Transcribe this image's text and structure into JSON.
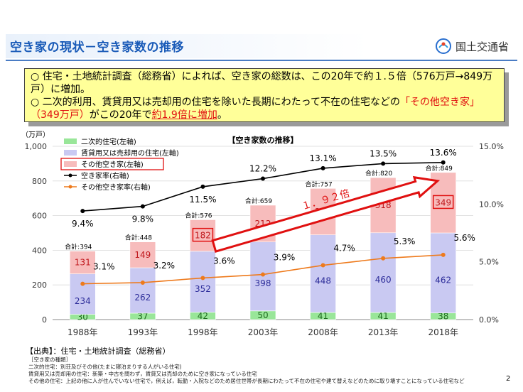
{
  "header": {
    "title": "空き家の現状－空き家数の推移",
    "ministry": "国土交通省"
  },
  "summary": {
    "line1_marker": "○",
    "line1": "住宅・土地統計調査（総務省）によれば、空き家の総数は、この20年で約１.５倍（576万戸→849万戸）に増加。",
    "line2_marker": "○",
    "line2_pre": "二次的利用、賃貸用又は売却用の住宅を除いた長期にわたって不在の住宅などの",
    "line2_red1": "「その他空き家」（349万戸）",
    "line2_mid": "がこの20年で",
    "line2_red2": "約1.9倍に増加",
    "line2_end": "。"
  },
  "chart_data": {
    "type": "bar",
    "title": "【空き家数の推移】",
    "left_unit": "（万戸）",
    "categories": [
      "1988年",
      "1993年",
      "1998年",
      "2003年",
      "2008年",
      "2013年",
      "2018年"
    ],
    "ylim": [
      0,
      1000
    ],
    "yticks": [
      "0",
      "200",
      "400",
      "600",
      "800",
      "1,000"
    ],
    "y2lim": [
      0,
      15
    ],
    "y2ticks": [
      "0.0%",
      "5.0%",
      "10.0%",
      "15.0%"
    ],
    "series": [
      {
        "name": "二次的住宅(左軸)",
        "values": [
          30,
          37,
          42,
          50,
          41,
          41,
          38
        ],
        "color": "#99e699"
      },
      {
        "name": "賃貸用又は売却用の住宅(左軸)",
        "values": [
          234,
          262,
          352,
          398,
          448,
          460,
          462
        ],
        "color": "#c9c9f2"
      },
      {
        "name": "その他空き家(左軸)",
        "values": [
          131,
          149,
          182,
          212,
          268,
          318,
          349
        ],
        "color": "#f7bcbc"
      }
    ],
    "lines": [
      {
        "name": "空き家率(右軸)",
        "values": [
          9.4,
          9.8,
          11.5,
          12.2,
          13.1,
          13.5,
          13.6
        ],
        "labels": [
          "9.4%",
          "9.8%",
          "11.5%",
          "12.2%",
          "13.1%",
          "13.5%",
          "13.6%"
        ],
        "color": "#000000"
      },
      {
        "name": "その他空き家率(右軸)",
        "values": [
          3.1,
          3.2,
          3.6,
          3.9,
          4.7,
          5.3,
          5.6
        ],
        "labels": [
          "3.1%",
          "3.2%",
          "3.6%",
          "3.9%",
          "4.7%",
          "5.3%",
          "5.6%"
        ],
        "color": "#ee7a1c"
      }
    ],
    "totals": [
      "合計:394",
      "合計:448",
      "合計:576",
      "合計:659",
      "合計:757",
      "合計:820",
      "合計:849"
    ],
    "growth_label": "１．９２倍",
    "legend_position": "top-left",
    "grid": true
  },
  "footer": {
    "source": "【出典】：住宅・土地統計調査（総務省）",
    "notes": [
      "［空き家の種類］",
      "二次的住宅：別荘及びその他(たまに寝泊まりする人がいる住宅)",
      "賃貸用又は売却用の住宅：新築・中古を問わず，賃貸又は売却のために空き家になっている住宅",
      "その他の住宅：上記の他に人が住んでいない住宅で，例えば，転勤・入院などのため居住世帯が長期にわたって不在の住宅や建て替えなどのために取り壊すことになっている住宅など"
    ],
    "page_number": "2"
  }
}
